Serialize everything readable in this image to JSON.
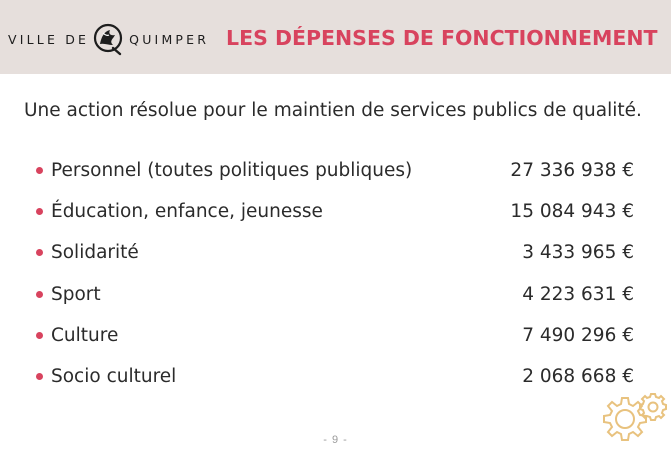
{
  "header": {
    "logo_left": "VILLE DE",
    "logo_right": "QUIMPER",
    "title": "LES DÉPENSES DE FONCTIONNEMENT"
  },
  "intro": "Une action résolue pour le maintien de services publics de qualité.",
  "items": [
    {
      "label": "Personnel (toutes politiques publiques)",
      "amount": "27 336 938 €"
    },
    {
      "label": "Éducation, enfance, jeunesse",
      "amount": "15 084 943 €"
    },
    {
      "label": "Solidarité",
      "amount": "3 433 965 €"
    },
    {
      "label": "Sport",
      "amount": "4 223 631 €"
    },
    {
      "label": "Culture",
      "amount": "7 490 296 €"
    },
    {
      "label": "Socio culturel",
      "amount": "2 068 668 €"
    }
  ],
  "page_number": "- 9 -",
  "icons": {
    "logo": "quimper-emblem-icon",
    "decoration": "gears-icon"
  },
  "colors": {
    "accent": "#d8435e",
    "header_bg": "#e6dfdc",
    "gear": "#e8c27e"
  }
}
